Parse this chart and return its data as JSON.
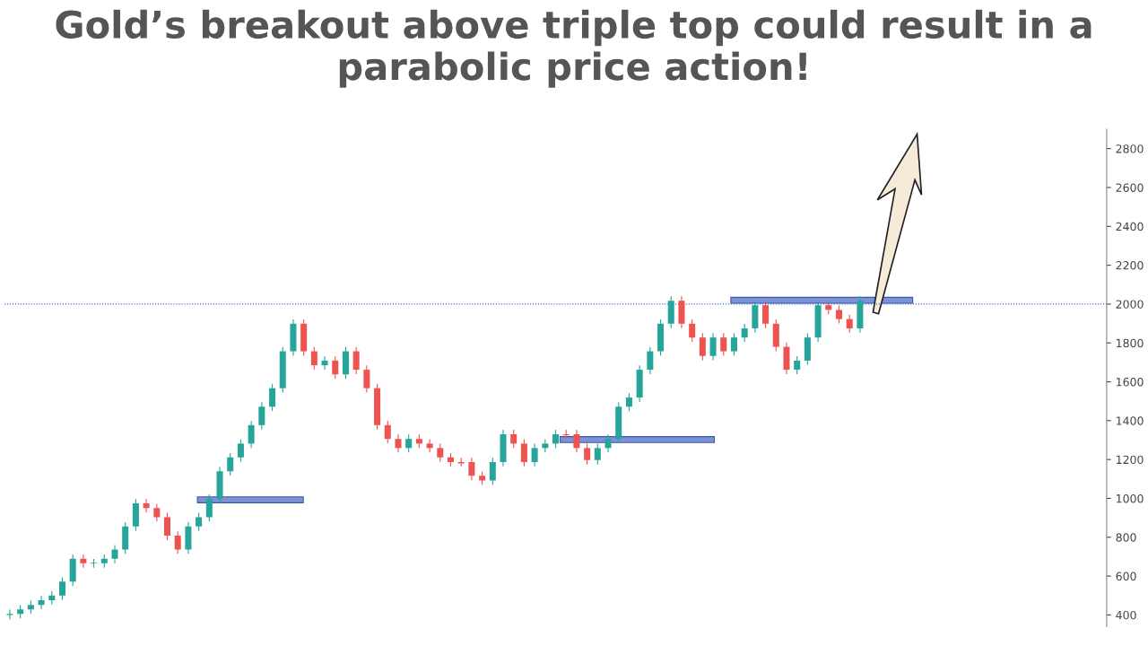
{
  "chart_data": {
    "type": "candlestick",
    "title": "Gold’s breakout above triple top could result in a parabolic price action!",
    "categories": [
      null,
      null,
      null,
      null,
      null,
      null,
      null,
      null,
      null,
      null,
      null,
      null,
      null,
      null,
      null,
      null,
      null,
      null,
      null,
      null,
      null,
      null,
      null,
      null,
      null,
      null,
      null,
      null,
      null,
      null,
      null,
      null,
      null,
      null,
      null,
      null,
      null,
      null,
      null,
      null,
      null,
      null,
      null,
      null,
      null,
      null,
      null,
      null,
      null,
      null,
      null,
      null,
      null,
      null,
      null,
      null,
      null,
      null,
      null,
      null,
      null,
      null,
      null,
      null,
      null,
      null,
      null,
      null,
      null,
      null,
      null,
      null,
      null,
      null,
      null,
      null,
      null,
      null,
      null,
      null,
      null,
      null,
      null,
      null,
      null,
      null,
      null,
      null,
      null,
      null,
      null,
      null,
      null,
      null,
      null,
      null,
      null,
      null,
      null,
      null,
      null,
      null,
      null,
      null,
      null
    ],
    "ohlc": [
      [
        400,
        425,
        380,
        405
      ],
      [
        405,
        448,
        385,
        428
      ],
      [
        428,
        472,
        408,
        452
      ],
      [
        452,
        496,
        432,
        476
      ],
      [
        476,
        520,
        456,
        500
      ],
      [
        500,
        591,
        480,
        571
      ],
      [
        571,
        709,
        551,
        689
      ],
      [
        689,
        709,
        646,
        666
      ],
      [
        666,
        686,
        646,
        670
      ],
      [
        666,
        709,
        646,
        689
      ],
      [
        689,
        757,
        669,
        737
      ],
      [
        737,
        875,
        717,
        855
      ],
      [
        855,
        994,
        835,
        974
      ],
      [
        974,
        994,
        930,
        950
      ],
      [
        950,
        970,
        883,
        903
      ],
      [
        903,
        923,
        788,
        808
      ],
      [
        808,
        828,
        717,
        737
      ],
      [
        737,
        875,
        717,
        855
      ],
      [
        855,
        923,
        835,
        903
      ],
      [
        903,
        1018,
        883,
        998
      ],
      [
        998,
        1160,
        978,
        1140
      ],
      [
        1140,
        1231,
        1120,
        1211
      ],
      [
        1211,
        1302,
        1191,
        1282
      ],
      [
        1282,
        1397,
        1262,
        1377
      ],
      [
        1377,
        1492,
        1357,
        1472
      ],
      [
        1472,
        1587,
        1452,
        1567
      ],
      [
        1567,
        1777,
        1547,
        1757
      ],
      [
        1757,
        1919,
        1737,
        1899
      ],
      [
        1899,
        1919,
        1737,
        1757
      ],
      [
        1757,
        1777,
        1665,
        1685
      ],
      [
        1685,
        1729,
        1665,
        1709
      ],
      [
        1709,
        1729,
        1618,
        1638
      ],
      [
        1638,
        1777,
        1618,
        1757
      ],
      [
        1757,
        1777,
        1642,
        1662
      ],
      [
        1662,
        1682,
        1547,
        1567
      ],
      [
        1567,
        1587,
        1357,
        1377
      ],
      [
        1377,
        1397,
        1286,
        1306
      ],
      [
        1306,
        1326,
        1239,
        1259
      ],
      [
        1259,
        1326,
        1239,
        1306
      ],
      [
        1306,
        1326,
        1262,
        1282
      ],
      [
        1282,
        1302,
        1239,
        1259
      ],
      [
        1259,
        1279,
        1191,
        1211
      ],
      [
        1211,
        1231,
        1167,
        1187
      ],
      [
        1187,
        1207,
        1167,
        1180
      ],
      [
        1187,
        1207,
        1096,
        1116
      ],
      [
        1116,
        1136,
        1072,
        1092
      ],
      [
        1092,
        1207,
        1072,
        1187
      ],
      [
        1187,
        1350,
        1167,
        1330
      ],
      [
        1330,
        1350,
        1262,
        1282
      ],
      [
        1282,
        1302,
        1167,
        1187
      ],
      [
        1187,
        1279,
        1167,
        1259
      ],
      [
        1259,
        1302,
        1239,
        1282
      ],
      [
        1282,
        1350,
        1262,
        1330
      ],
      [
        1330,
        1350,
        1310,
        1325
      ],
      [
        1330,
        1350,
        1239,
        1259
      ],
      [
        1259,
        1279,
        1177,
        1197
      ],
      [
        1197,
        1279,
        1177,
        1259
      ],
      [
        1259,
        1326,
        1239,
        1306
      ],
      [
        1306,
        1492,
        1286,
        1472
      ],
      [
        1472,
        1539,
        1452,
        1519
      ],
      [
        1519,
        1682,
        1499,
        1662
      ],
      [
        1662,
        1777,
        1642,
        1757
      ],
      [
        1757,
        1919,
        1737,
        1899
      ],
      [
        1899,
        2037,
        1879,
        2017
      ],
      [
        2017,
        2037,
        1879,
        1899
      ],
      [
        1899,
        1919,
        1808,
        1828
      ],
      [
        1828,
        1848,
        1713,
        1733
      ],
      [
        1733,
        1848,
        1713,
        1828
      ],
      [
        1828,
        1848,
        1737,
        1757
      ],
      [
        1757,
        1848,
        1737,
        1828
      ],
      [
        1828,
        1895,
        1808,
        1875
      ],
      [
        1875,
        2014,
        1855,
        1994
      ],
      [
        1994,
        2014,
        1879,
        1899
      ],
      [
        1899,
        1919,
        1760,
        1780
      ],
      [
        1780,
        1800,
        1642,
        1662
      ],
      [
        1662,
        1729,
        1642,
        1709
      ],
      [
        1709,
        1848,
        1689,
        1828
      ],
      [
        1828,
        2014,
        1808,
        1994
      ],
      [
        1994,
        2014,
        1950,
        1970
      ],
      [
        1970,
        1990,
        1903,
        1923
      ],
      [
        1923,
        1943,
        1855,
        1875
      ],
      [
        1875,
        2037,
        1855,
        2017
      ],
      null,
      null,
      null,
      null,
      null,
      null,
      null,
      null,
      null,
      null,
      null,
      null,
      null,
      null,
      null,
      null,
      null,
      null,
      null,
      null,
      null,
      null,
      null
    ],
    "ylim": [
      340,
      2900
    ],
    "yticks": [
      400,
      600,
      800,
      1000,
      1200,
      1400,
      1600,
      1800,
      2000,
      2200,
      2400,
      2600,
      2800
    ],
    "ref_lines": [
      {
        "axis": "y",
        "value": 2000,
        "color": "#3d63d6",
        "line_style": "dotted"
      }
    ],
    "tick_labels": "y",
    "grid": false
  }
}
